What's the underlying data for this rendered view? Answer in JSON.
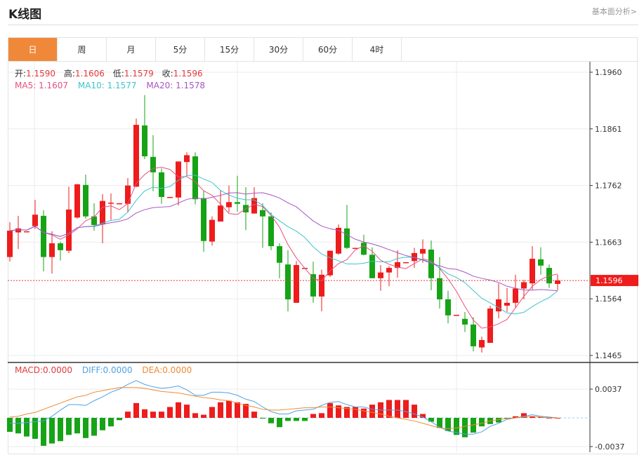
{
  "header": {
    "title": "K线图",
    "more_link": "基本面分析>"
  },
  "tabs": [
    {
      "label": "日",
      "active": true
    },
    {
      "label": "周"
    },
    {
      "label": "月"
    },
    {
      "label": "5分"
    },
    {
      "label": "15分"
    },
    {
      "label": "30分"
    },
    {
      "label": "60分"
    },
    {
      "label": "4时"
    }
  ],
  "ohlc_info": {
    "open_label": "开:",
    "open": "1.1590",
    "high_label": "高:",
    "high": "1.1606",
    "low_label": "低:",
    "low": "1.1579",
    "close_label": "收:",
    "close": "1.1596"
  },
  "ma_info": {
    "ma5": "MA5: 1.1607",
    "ma10": "MA10: 1.1577",
    "ma20": "MA20: 1.1578"
  },
  "macd_info": {
    "macd": "MACD:0.0000",
    "diff": "DIFF:0.0000",
    "dea": "DEA:0.0000"
  },
  "current_price": "1.1596",
  "colors": {
    "up": "#ee1c1c",
    "down": "#16a316",
    "accent": "#f0883a",
    "ma5": "#e8517f",
    "ma10": "#3cc4cf",
    "ma20": "#a755c2",
    "diff": "#4da3e8",
    "dea": "#f08a32"
  },
  "chart_data": {
    "type": "candlestick",
    "price_axis": {
      "ticks": [
        "1.1960",
        "1.1861",
        "1.1762",
        "1.1663",
        "1.1564",
        "1.1465"
      ],
      "range": [
        1.1465,
        1.196
      ]
    },
    "macd_axis": {
      "ticks": [
        "0.0037",
        "-0.0037"
      ],
      "range": [
        -0.0037,
        0.0037
      ]
    },
    "grid": true,
    "candles": [
      [
        1.1637,
        1.1698,
        1.1629,
        1.1683
      ],
      [
        1.168,
        1.1709,
        1.1651,
        1.1687
      ],
      [
        1.1682,
        1.1682,
        1.1682,
        1.1682
      ],
      [
        1.1691,
        1.1737,
        1.1686,
        1.1711
      ],
      [
        1.1709,
        1.1719,
        1.1612,
        1.1637
      ],
      [
        1.1637,
        1.1682,
        1.1608,
        1.1661
      ],
      [
        1.1661,
        1.1664,
        1.1631,
        1.1649
      ],
      [
        1.1648,
        1.176,
        1.1644,
        1.172
      ],
      [
        1.1706,
        1.1765,
        1.1704,
        1.1764
      ],
      [
        1.1763,
        1.1781,
        1.1704,
        1.1708
      ],
      [
        1.1708,
        1.1731,
        1.1683,
        1.1693
      ],
      [
        1.1694,
        1.1747,
        1.1661,
        1.1735
      ],
      [
        1.1731,
        1.1748,
        1.1702,
        1.1732
      ],
      [
        1.1731,
        1.1731,
        1.1731,
        1.1731
      ],
      [
        1.173,
        1.1775,
        1.1716,
        1.1762
      ],
      [
        1.176,
        1.1879,
        1.1759,
        1.1868
      ],
      [
        1.1867,
        1.192,
        1.1808,
        1.1813
      ],
      [
        1.1812,
        1.185,
        1.1752,
        1.1785
      ],
      [
        1.1785,
        1.1792,
        1.173,
        1.1742
      ],
      [
        1.1742,
        1.1742,
        1.1742,
        1.1742
      ],
      [
        1.1741,
        1.1804,
        1.1727,
        1.1804
      ],
      [
        1.1803,
        1.182,
        1.178,
        1.1815
      ],
      [
        1.1813,
        1.182,
        1.1729,
        1.1738
      ],
      [
        1.174,
        1.1753,
        1.1646,
        1.1665
      ],
      [
        1.1664,
        1.1708,
        1.1657,
        1.1702
      ],
      [
        1.1699,
        1.1754,
        1.1699,
        1.1727
      ],
      [
        1.1724,
        1.1762,
        1.1715,
        1.1733
      ],
      [
        1.1733,
        1.1779,
        1.1716,
        1.173
      ],
      [
        1.1728,
        1.1759,
        1.1684,
        1.1715
      ],
      [
        1.1713,
        1.1759,
        1.1713,
        1.174
      ],
      [
        1.1719,
        1.1731,
        1.1653,
        1.1708
      ],
      [
        1.1708,
        1.1715,
        1.1649,
        1.1656
      ],
      [
        1.1656,
        1.1661,
        1.16,
        1.1627
      ],
      [
        1.1624,
        1.1649,
        1.1542,
        1.1563
      ],
      [
        1.1557,
        1.163,
        1.1557,
        1.1623
      ],
      [
        1.1618,
        1.1618,
        1.1618,
        1.1618
      ],
      [
        1.1607,
        1.1629,
        1.1557,
        1.1568
      ],
      [
        1.1568,
        1.1615,
        1.1542,
        1.1606
      ],
      [
        1.1605,
        1.1648,
        1.1602,
        1.1648
      ],
      [
        1.1643,
        1.1694,
        1.1641,
        1.1688
      ],
      [
        1.1687,
        1.1728,
        1.1651,
        1.1653
      ],
      [
        1.1653,
        1.1653,
        1.1653,
        1.1653
      ],
      [
        1.1662,
        1.1676,
        1.164,
        1.1641
      ],
      [
        1.1641,
        1.1654,
        1.16,
        1.16
      ],
      [
        1.16,
        1.1623,
        1.1578,
        1.161
      ],
      [
        1.161,
        1.1621,
        1.1586,
        1.1618
      ],
      [
        1.1618,
        1.1649,
        1.1601,
        1.1628
      ],
      [
        1.1628,
        1.1628,
        1.1628,
        1.1628
      ],
      [
        1.163,
        1.1653,
        1.1618,
        1.1644
      ],
      [
        1.1643,
        1.1668,
        1.1627,
        1.1651
      ],
      [
        1.165,
        1.1666,
        1.1579,
        1.16
      ],
      [
        1.16,
        1.1637,
        1.1547,
        1.1563
      ],
      [
        1.1563,
        1.1578,
        1.1521,
        1.1535
      ],
      [
        1.1536,
        1.1536,
        1.1536,
        1.1536
      ],
      [
        1.1529,
        1.1541,
        1.1506,
        1.1519
      ],
      [
        1.1519,
        1.1532,
        1.1472,
        1.1481
      ],
      [
        1.1479,
        1.1498,
        1.147,
        1.1492
      ],
      [
        1.1487,
        1.1552,
        1.1487,
        1.1547
      ],
      [
        1.1542,
        1.1591,
        1.153,
        1.1563
      ],
      [
        1.1552,
        1.1583,
        1.1541,
        1.1557
      ],
      [
        1.1557,
        1.1606,
        1.1548,
        1.1582
      ],
      [
        1.1582,
        1.1597,
        1.1563,
        1.1593
      ],
      [
        1.1591,
        1.1656,
        1.158,
        1.1634
      ],
      [
        1.1633,
        1.1654,
        1.1606,
        1.1622
      ],
      [
        1.1618,
        1.1624,
        1.1583,
        1.1591
      ],
      [
        1.159,
        1.1606,
        1.1579,
        1.1596
      ]
    ],
    "macd": [
      -0.0018,
      -0.002,
      -0.0024,
      -0.0027,
      -0.0036,
      -0.0033,
      -0.003,
      -0.0022,
      -0.002,
      -0.0026,
      -0.0023,
      -0.0016,
      -0.0011,
      -0.0003,
      0.0008,
      0.0019,
      0.0011,
      0.0008,
      0.0008,
      0.0014,
      0.002,
      0.0017,
      0.0006,
      0.0004,
      0.0014,
      0.002,
      0.0022,
      0.002,
      0.0018,
      0.0008,
      -0.0001,
      -0.0007,
      -0.0012,
      -0.0004,
      -0.0004,
      -0.0004,
      0.0005,
      0.0006,
      0.0019,
      0.0016,
      0.0014,
      0.0014,
      0.0012,
      0.0017,
      0.002,
      0.0023,
      0.0023,
      0.0023,
      0.0017,
      0.0005,
      -0.0005,
      -0.0013,
      -0.0017,
      -0.0022,
      -0.0025,
      -0.0019,
      -0.0011,
      -0.0008,
      -0.0006,
      -0.0001,
      0.0002,
      0.0006,
      0.0002,
      0.0001,
      0.0,
      0.0
    ],
    "diff": [
      -0.0007,
      -0.0007,
      -0.0006,
      -0.0005,
      -0.0004,
      0.0002,
      0.001,
      0.0017,
      0.0017,
      0.0016,
      0.0022,
      0.0027,
      0.0033,
      0.0037,
      0.0043,
      0.0048,
      0.0043,
      0.004,
      0.0038,
      0.0039,
      0.0041,
      0.0036,
      0.0029,
      0.0029,
      0.0033,
      0.0033,
      0.0032,
      0.0029,
      0.0024,
      0.0021,
      0.0014,
      0.0008,
      0.0005,
      0.0005,
      0.0009,
      0.001,
      0.0011,
      0.0016,
      0.002,
      0.0021,
      0.0017,
      0.0014,
      0.0014,
      0.0011,
      0.001,
      0.001,
      0.001,
      0.0008,
      0.0005,
      0.0001,
      -0.0005,
      -0.0012,
      -0.0017,
      -0.0019,
      -0.0021,
      -0.0021,
      -0.0018,
      -0.0011,
      -0.0007,
      -0.0002,
      0.0,
      0.0002,
      0.0004,
      0.0002,
      0.0001,
      0.0
    ],
    "dea": [
      0.0001,
      0.0002,
      0.0005,
      0.0007,
      0.0011,
      0.0015,
      0.0019,
      0.0023,
      0.0027,
      0.0029,
      0.0033,
      0.0035,
      0.0037,
      0.0039,
      0.0039,
      0.0039,
      0.0038,
      0.0036,
      0.0034,
      0.0033,
      0.0032,
      0.003,
      0.0028,
      0.0026,
      0.0025,
      0.0023,
      0.0022,
      0.0019,
      0.0016,
      0.0014,
      0.0011,
      0.001,
      0.001,
      0.0011,
      0.0012,
      0.0013,
      0.0013,
      0.0014,
      0.0014,
      0.0013,
      0.0012,
      0.0011,
      0.0009,
      0.0007,
      0.0005,
      0.0002,
      0.0,
      -0.0002,
      -0.0004,
      -0.0007,
      -0.001,
      -0.0013,
      -0.0014,
      -0.0013,
      -0.0011,
      -0.0009,
      -0.0007,
      -0.0004,
      -0.0002,
      -0.0001,
      0.0,
      0.0001,
      0.0002,
      0.0001,
      0.0,
      0.0
    ]
  }
}
